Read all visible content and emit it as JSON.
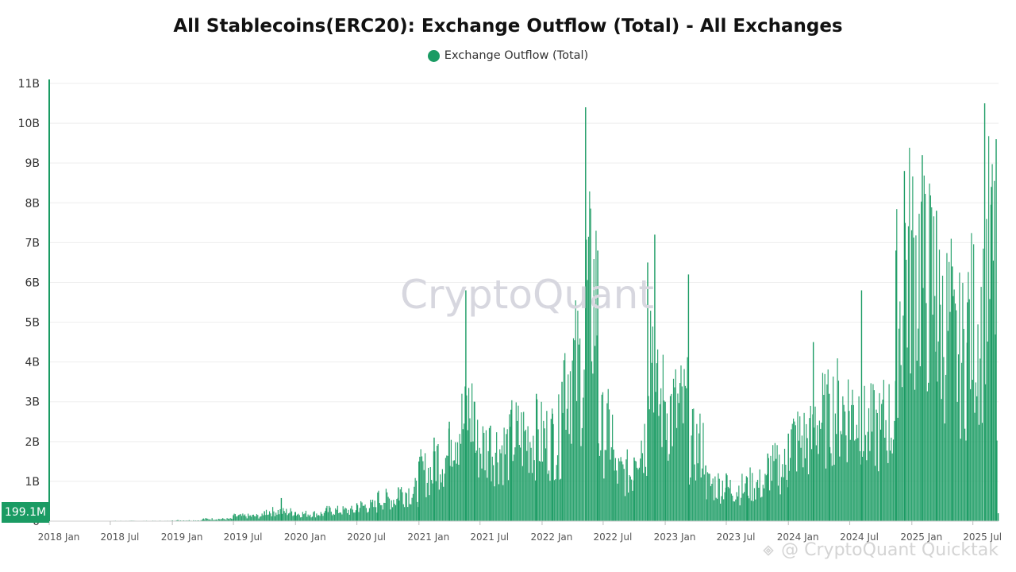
{
  "page": {
    "title": "All Stablecoins(ERC20): Exchange Outflow (Total) - All Exchanges",
    "watermark": "CryptoQuant",
    "last_value_badge": "199.1M",
    "footer_credit": "@ CryptoQuant Quicktak",
    "footer_icon": "binance-square-icon"
  },
  "colors": {
    "series": "#1a9b63",
    "badge": "#1a9b63",
    "grid": "#eeeeee",
    "axis_text": "#333333"
  },
  "chart_data": {
    "type": "bar",
    "title": "All Stablecoins(ERC20): Exchange Outflow (Total) - All Exchanges",
    "xlabel": "",
    "ylabel": "",
    "x_range": [
      "2018-01-01",
      "2025-09-15"
    ],
    "x_ticks": [
      {
        "date": "2018-01-01",
        "label": "2018 Jan"
      },
      {
        "date": "2018-07-01",
        "label": "2018 Jul"
      },
      {
        "date": "2019-01-01",
        "label": "2019 Jan"
      },
      {
        "date": "2019-07-01",
        "label": "2019 Jul"
      },
      {
        "date": "2020-01-01",
        "label": "2020 Jan"
      },
      {
        "date": "2020-07-01",
        "label": "2020 Jul"
      },
      {
        "date": "2021-01-01",
        "label": "2021 Jan"
      },
      {
        "date": "2021-07-01",
        "label": "2021 Jul"
      },
      {
        "date": "2022-01-01",
        "label": "2022 Jan"
      },
      {
        "date": "2022-07-01",
        "label": "2022 Jul"
      },
      {
        "date": "2023-01-01",
        "label": "2023 Jan"
      },
      {
        "date": "2023-07-01",
        "label": "2023 Jul"
      },
      {
        "date": "2024-01-01",
        "label": "2024 Jan"
      },
      {
        "date": "2024-07-01",
        "label": "2024 Jul"
      },
      {
        "date": "2025-01-01",
        "label": "2025 Jan"
      },
      {
        "date": "2025-07-01",
        "label": "2025 Jul"
      }
    ],
    "y_ticks": [
      {
        "value": 0,
        "label": "0"
      },
      {
        "value": 1000000000,
        "label": "1B"
      },
      {
        "value": 2000000000,
        "label": "2B"
      },
      {
        "value": 3000000000,
        "label": "3B"
      },
      {
        "value": 4000000000,
        "label": "4B"
      },
      {
        "value": 5000000000,
        "label": "5B"
      },
      {
        "value": 6000000000,
        "label": "6B"
      },
      {
        "value": 7000000000,
        "label": "7B"
      },
      {
        "value": 8000000000,
        "label": "8B"
      },
      {
        "value": 9000000000,
        "label": "9B"
      },
      {
        "value": 10000000000,
        "label": "10B"
      },
      {
        "value": 11000000000,
        "label": "11B"
      }
    ],
    "ylim": [
      0,
      11000000000
    ],
    "grid": true,
    "legend_position": "top-center",
    "series": [
      {
        "name": "Exchange Outflow (Total)",
        "color": "#1a9b63",
        "points": [
          [
            "2018-01-01",
            0
          ],
          [
            "2018-07-01",
            10000000
          ],
          [
            "2019-01-01",
            20000000
          ],
          [
            "2019-04-01",
            50000000
          ],
          [
            "2019-07-01",
            150000000
          ],
          [
            "2019-10-01",
            250000000
          ],
          [
            "2019-11-20",
            580000000
          ],
          [
            "2020-01-01",
            230000000
          ],
          [
            "2020-04-01",
            330000000
          ],
          [
            "2020-07-01",
            450000000
          ],
          [
            "2020-09-01",
            720000000
          ],
          [
            "2020-11-01",
            850000000
          ],
          [
            "2021-01-01",
            1500000000
          ],
          [
            "2021-02-15",
            2100000000
          ],
          [
            "2021-04-01",
            2500000000
          ],
          [
            "2021-05-20",
            5800000000
          ],
          [
            "2021-06-15",
            3000000000
          ],
          [
            "2021-08-01",
            2400000000
          ],
          [
            "2021-10-01",
            2800000000
          ],
          [
            "2021-12-15",
            3200000000
          ],
          [
            "2022-02-01",
            2700000000
          ],
          [
            "2022-03-01",
            3500000000
          ],
          [
            "2022-05-10",
            10400000000
          ],
          [
            "2022-06-15",
            6800000000
          ],
          [
            "2022-08-01",
            1800000000
          ],
          [
            "2022-10-01",
            1600000000
          ],
          [
            "2022-11-10",
            6500000000
          ],
          [
            "2022-12-01",
            7200000000
          ],
          [
            "2023-01-01",
            3000000000
          ],
          [
            "2023-03-11",
            6200000000
          ],
          [
            "2023-05-01",
            1400000000
          ],
          [
            "2023-07-01",
            1200000000
          ],
          [
            "2023-09-01",
            1100000000
          ],
          [
            "2023-11-01",
            1700000000
          ],
          [
            "2024-01-01",
            2200000000
          ],
          [
            "2024-03-15",
            4500000000
          ],
          [
            "2024-05-01",
            3200000000
          ],
          [
            "2024-08-05",
            5800000000
          ],
          [
            "2024-10-01",
            2300000000
          ],
          [
            "2024-11-15",
            6800000000
          ],
          [
            "2024-12-10",
            8800000000
          ],
          [
            "2025-02-01",
            9200000000
          ],
          [
            "2025-03-15",
            7800000000
          ],
          [
            "2025-05-01",
            6400000000
          ],
          [
            "2025-06-15",
            5500000000
          ],
          [
            "2025-08-05",
            10500000000
          ],
          [
            "2025-08-25",
            8400000000
          ],
          [
            "2025-09-08",
            9600000000
          ],
          [
            "2025-09-14",
            199100000
          ]
        ]
      }
    ]
  }
}
